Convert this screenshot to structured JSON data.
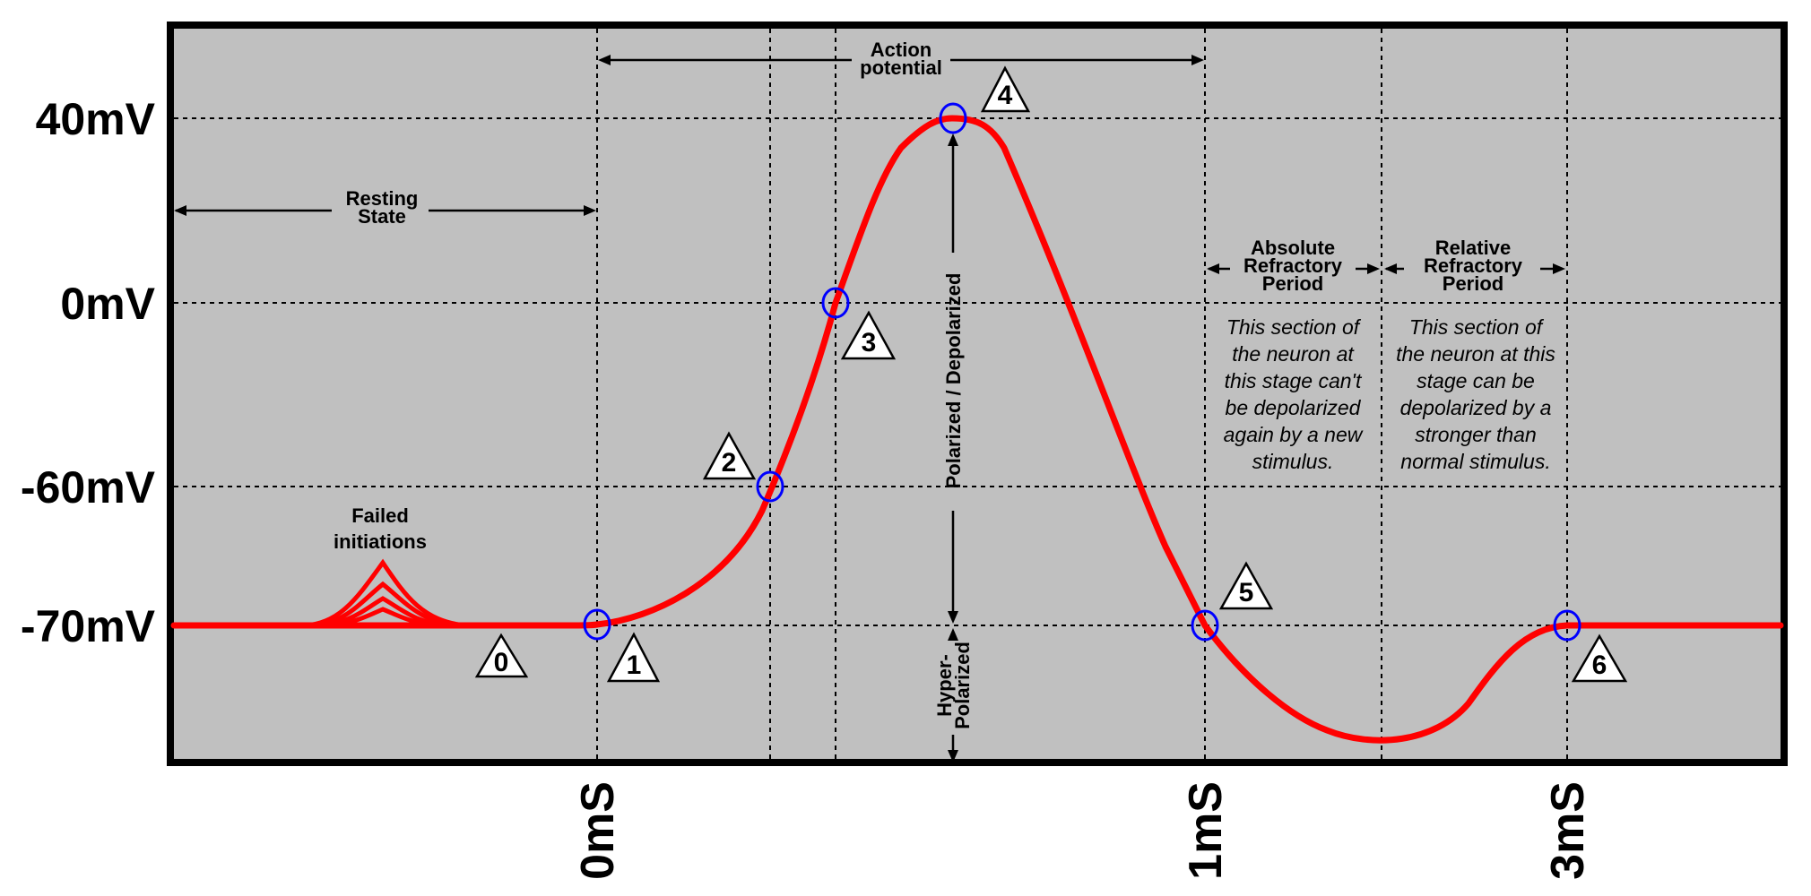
{
  "y_ticks": [
    {
      "label": "40mV",
      "mv": 40
    },
    {
      "label": "0mV",
      "mv": 0
    },
    {
      "label": "-60mV",
      "mv": -60
    },
    {
      "label": "-70mV",
      "mv": -70
    }
  ],
  "x_ticks": [
    "0mS",
    "1mS",
    "3mS"
  ],
  "annotations": {
    "action_potential": [
      "Action",
      "potential"
    ],
    "resting_state": [
      "Resting",
      "State"
    ],
    "failed_initiations": [
      "Failed",
      "initiations"
    ],
    "absolute_refractory": [
      "Absolute",
      "Refractory",
      "Period"
    ],
    "relative_refractory": [
      "Relative",
      "Refractory",
      "Period"
    ],
    "polarized_depolarized": "Polarized / Depolarized",
    "hyper_polarized": [
      "Hyper-",
      "Polarized"
    ]
  },
  "descriptions": {
    "absolute": [
      "This section of",
      "the neuron at",
      "this stage can't",
      "be depolarized",
      "again by a new",
      "stimulus."
    ],
    "relative": [
      "This section of",
      "the neuron at this",
      "stage can be",
      "depolarized by a",
      "stronger than",
      "normal stimulus."
    ]
  },
  "stage_numbers": [
    "0",
    "1",
    "2",
    "3",
    "4",
    "5",
    "6"
  ],
  "colors": {
    "background": "#c0c0c0",
    "curve": "#ff0000",
    "markers": "#0000ff"
  }
}
